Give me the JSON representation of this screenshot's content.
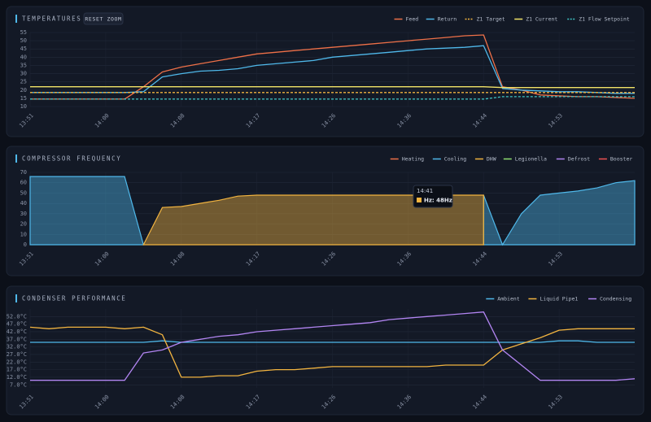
{
  "chart_data": [
    {
      "type": "line",
      "title": "TEMPERATURES",
      "button": "RESET ZOOM",
      "categories": [
        "13:51",
        null,
        null,
        null,
        "14:00",
        null,
        null,
        null,
        "14:08",
        null,
        null,
        null,
        "14:17",
        null,
        null,
        null,
        "14:26",
        null,
        null,
        null,
        "14:36",
        null,
        null,
        null,
        "14:44",
        null,
        null,
        null,
        "14:53",
        null,
        null,
        null,
        null
      ],
      "ylim": [
        10,
        55
      ],
      "yticks": [
        10,
        15,
        20,
        25,
        30,
        35,
        40,
        45,
        50,
        55
      ],
      "grid": true,
      "legend": "top-right",
      "series": [
        {
          "name": "Feed",
          "color": "#ee7048",
          "values": [
            14.5,
            14.5,
            14.5,
            14.5,
            14.5,
            14.5,
            22,
            31,
            34,
            36,
            38,
            40,
            42,
            43,
            44,
            45,
            46,
            47,
            48,
            49,
            50,
            51,
            52,
            53,
            53.5,
            22,
            20,
            17,
            16.5,
            16,
            16,
            15.5,
            15
          ]
        },
        {
          "name": "Return",
          "color": "#4fb8ea",
          "values": [
            18.5,
            18.5,
            18.5,
            18.5,
            18.5,
            18.5,
            19,
            28,
            30,
            31.5,
            32,
            33,
            35,
            36,
            37,
            38,
            40,
            41,
            42,
            43,
            44,
            45,
            45.5,
            46,
            47,
            21,
            20,
            19.5,
            19,
            19,
            18.5,
            18,
            18
          ]
        },
        {
          "name": "Z1 Target",
          "color": "#f2b440",
          "dash": true,
          "values": [
            18.5,
            18.5,
            18.5,
            18.5,
            18.5,
            18.5,
            18.5,
            18.5,
            18.5,
            18.5,
            18.5,
            18.5,
            18.5,
            18.5,
            18.5,
            18.5,
            18.5,
            18.5,
            18.5,
            18.5,
            18.5,
            18.5,
            18.5,
            18.5,
            18.5,
            18.5,
            18.5,
            18.5,
            18.5,
            18.5,
            18.5,
            18.5,
            18.5
          ]
        },
        {
          "name": "Z1 Current",
          "color": "#f3e468",
          "values": [
            22,
            22,
            22,
            22,
            22,
            22,
            22,
            22,
            22,
            22,
            22,
            22,
            22,
            22,
            22,
            22,
            22,
            22,
            22,
            22,
            22,
            22,
            22,
            22,
            22,
            21.5,
            21.5,
            21.5,
            21.5,
            21.5,
            21.5,
            21.5,
            21.5
          ]
        },
        {
          "name": "Z1 Flow Setpoint",
          "color": "#3fc6c6",
          "dash": true,
          "values": [
            14.5,
            14.5,
            14.5,
            14.5,
            14.5,
            14.5,
            14.5,
            14.5,
            14.5,
            14.5,
            14.5,
            14.5,
            14.5,
            14.5,
            14.5,
            14.5,
            14.5,
            14.5,
            14.5,
            14.5,
            14.5,
            14.5,
            14.5,
            14.5,
            14.5,
            16,
            16,
            16,
            16,
            16,
            16,
            16,
            16
          ]
        }
      ]
    },
    {
      "type": "area",
      "title": "COMPRESSOR FREQUENCY",
      "categories": [
        "13:51",
        null,
        null,
        null,
        "14:00",
        null,
        null,
        null,
        "14:08",
        null,
        null,
        null,
        "14:17",
        null,
        null,
        null,
        "14:26",
        null,
        null,
        null,
        "14:36",
        null,
        null,
        null,
        "14:44",
        null,
        null,
        null,
        "14:53",
        null,
        null,
        null,
        null
      ],
      "ylim": [
        0,
        70
      ],
      "yticks": [
        0,
        10,
        20,
        30,
        40,
        50,
        60,
        70
      ],
      "grid": true,
      "legend": "top-right",
      "tooltip": {
        "title": "14:41",
        "text": "Hz: 48Hz"
      },
      "series": [
        {
          "name": "Heating",
          "color": "#ee7048",
          "values": [
            null,
            null,
            null,
            null,
            null,
            null,
            null,
            null,
            null,
            null,
            null,
            null,
            null,
            null,
            null,
            null,
            null,
            null,
            null,
            null,
            null,
            null,
            null,
            null,
            null,
            null,
            null,
            null,
            null,
            null,
            null,
            null,
            null
          ]
        },
        {
          "name": "Cooling",
          "color": "#4fb8ea",
          "values": [
            66,
            66,
            66,
            66,
            66,
            66,
            0,
            null,
            null,
            null,
            null,
            null,
            null,
            null,
            null,
            null,
            null,
            null,
            null,
            null,
            null,
            null,
            null,
            null,
            48,
            0,
            30,
            48,
            50,
            52,
            55,
            60,
            62
          ]
        },
        {
          "name": "DHW",
          "color": "#f2b440",
          "values": [
            null,
            null,
            null,
            null,
            null,
            null,
            0,
            36,
            37,
            40,
            43,
            47,
            48,
            48,
            48,
            48,
            48,
            48,
            48,
            48,
            48,
            48,
            48,
            48,
            48,
            null,
            null,
            null,
            null,
            null,
            null,
            null,
            null
          ]
        },
        {
          "name": "Legionella",
          "color": "#8fe070",
          "values": [
            null,
            null,
            null,
            null,
            null,
            null,
            null,
            null,
            null,
            null,
            null,
            null,
            null,
            null,
            null,
            null,
            null,
            null,
            null,
            null,
            null,
            null,
            null,
            null,
            null,
            null,
            null,
            null,
            null,
            null,
            null,
            null,
            null
          ]
        },
        {
          "name": "Defrost",
          "color": "#b285f2",
          "values": [
            null,
            null,
            null,
            null,
            null,
            null,
            null,
            null,
            null,
            null,
            null,
            null,
            null,
            null,
            null,
            null,
            null,
            null,
            null,
            null,
            null,
            null,
            null,
            null,
            null,
            null,
            null,
            null,
            null,
            null,
            null,
            null,
            null
          ]
        },
        {
          "name": "Booster",
          "color": "#f05252",
          "values": [
            null,
            null,
            null,
            null,
            null,
            null,
            null,
            null,
            null,
            null,
            null,
            null,
            null,
            null,
            null,
            null,
            null,
            null,
            null,
            null,
            null,
            null,
            null,
            null,
            null,
            null,
            null,
            null,
            null,
            null,
            null,
            null,
            null
          ]
        }
      ]
    },
    {
      "type": "line",
      "title": "CONDENSER PERFORMANCE",
      "categories": [
        "13:51",
        null,
        null,
        null,
        "14:00",
        null,
        null,
        null,
        "14:08",
        null,
        null,
        null,
        "14:17",
        null,
        null,
        null,
        "14:26",
        null,
        null,
        null,
        "14:36",
        null,
        null,
        null,
        "14:44",
        null,
        null,
        null,
        "14:53",
        null,
        null,
        null,
        null
      ],
      "ylim": [
        5,
        57
      ],
      "yticks": [
        {
          "value": 7,
          "label": "7.0°C"
        },
        {
          "value": 12,
          "label": "12.0°C"
        },
        {
          "value": 17,
          "label": "17.0°C"
        },
        {
          "value": 22,
          "label": "22.0°C"
        },
        {
          "value": 27,
          "label": "27.0°C"
        },
        {
          "value": 32,
          "label": "32.0°C"
        },
        {
          "value": 37,
          "label": "37.0°C"
        },
        {
          "value": 42,
          "label": "42.0°C"
        },
        {
          "value": 47,
          "label": "47.0°C"
        },
        {
          "value": 52,
          "label": "52.0°C"
        }
      ],
      "grid": true,
      "legend": "top-right",
      "series": [
        {
          "name": "Ambient",
          "color": "#4fb8ea",
          "values": [
            35,
            35,
            35,
            35,
            35,
            35,
            35,
            36,
            35,
            35,
            35,
            35,
            35,
            35,
            35,
            35,
            35,
            35,
            35,
            35,
            35,
            35,
            35,
            35,
            35,
            35,
            35,
            35,
            36,
            36,
            35,
            35,
            35
          ]
        },
        {
          "name": "Liquid Pipe1",
          "color": "#f2b440",
          "values": [
            45,
            44,
            45,
            45,
            45,
            44,
            45,
            40,
            12,
            12,
            13,
            13,
            16,
            17,
            17,
            18,
            19,
            19,
            19,
            19,
            19,
            19,
            20,
            20,
            20,
            30,
            34,
            38,
            43,
            44,
            44,
            44,
            44
          ]
        },
        {
          "name": "Condensing",
          "color": "#b285f2",
          "values": [
            10,
            10,
            10,
            10,
            10,
            10,
            28,
            30,
            35,
            37,
            39,
            40,
            42,
            43,
            44,
            45,
            46,
            47,
            48,
            50,
            51,
            52,
            53,
            54,
            55,
            30,
            20,
            10,
            10,
            10,
            10,
            10,
            11
          ]
        }
      ]
    }
  ]
}
